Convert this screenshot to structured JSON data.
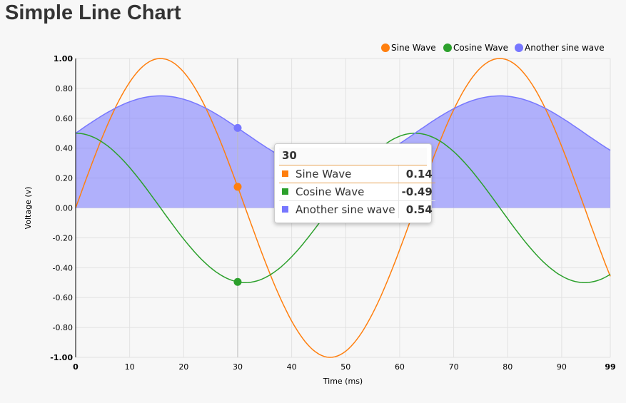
{
  "page": {
    "title": "Simple Line Chart"
  },
  "chart_data": {
    "type": "line",
    "title": "Simple Line Chart",
    "xlabel": "Time (ms)",
    "ylabel": "Voltage (v)",
    "xlim": [
      0,
      99
    ],
    "ylim": [
      -1,
      1
    ],
    "x_ticks": [
      "0",
      "10",
      "20",
      "30",
      "40",
      "50",
      "60",
      "70",
      "80",
      "90",
      "99"
    ],
    "y_ticks": [
      "-1.00",
      "-0.80",
      "-0.60",
      "-0.40",
      "-0.20",
      "0.00",
      "0.20",
      "0.40",
      "0.60",
      "0.80",
      "1.00"
    ],
    "grid": true,
    "legend_position": "top-right",
    "series": [
      {
        "name": "Sine Wave",
        "color": "#ff7f0e",
        "area": false,
        "formula": "sin(x/10)"
      },
      {
        "name": "Cosine Wave",
        "color": "#2ca02c",
        "area": false,
        "formula": "0.5*cos(x/10)"
      },
      {
        "name": "Another sine wave",
        "color": "#7777ff",
        "area": true,
        "formula": "0.25*sin(x/10)+0.5 (area)"
      }
    ],
    "hover": {
      "x": "30",
      "rows": [
        {
          "name": "Sine Wave",
          "value": "0.14",
          "color": "#ff7f0e"
        },
        {
          "name": "Cosine Wave",
          "value": "-0.49",
          "color": "#2ca02c"
        },
        {
          "name": "Another sine wave",
          "value": "0.54",
          "color": "#7777ff"
        }
      ]
    }
  }
}
